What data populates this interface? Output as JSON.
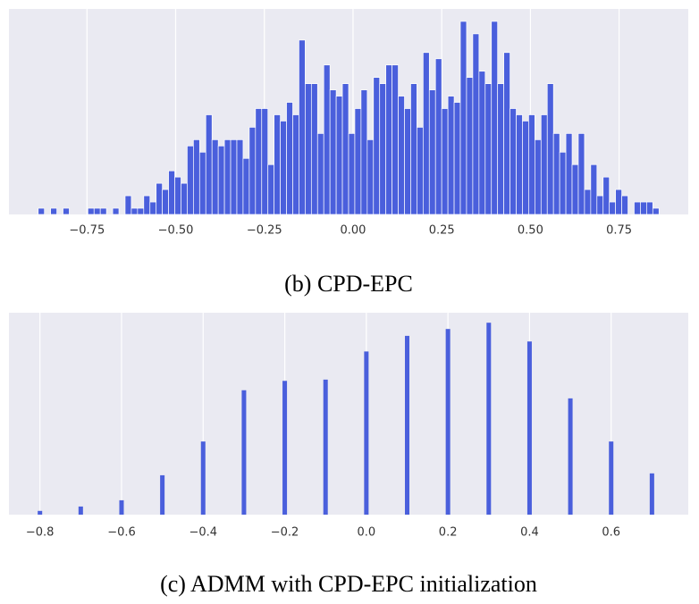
{
  "chart_data": [
    {
      "type": "histogram",
      "caption": "(b) CPD-EPC",
      "color": "#4a5fdc",
      "grid": true,
      "xlim": [
        -0.97,
        0.945
      ],
      "ylim": [
        0,
        33
      ],
      "xticks": [
        {
          "value": -0.75,
          "label": "−0.75"
        },
        {
          "value": -0.5,
          "label": "−0.50"
        },
        {
          "value": -0.25,
          "label": "−0.25"
        },
        {
          "value": 0,
          "label": "0.00"
        },
        0.25,
        {
          "value": 0.5,
          "label": "0.50"
        },
        0.75
      ],
      "bins": [
        -0.8875,
        -0.87,
        -0.8525,
        -0.835,
        -0.8175,
        -0.8,
        -0.7825,
        -0.765,
        -0.7475,
        -0.73,
        -0.7125,
        -0.695,
        -0.6775,
        -0.66,
        -0.6425,
        -0.625,
        -0.6075,
        -0.59,
        -0.5725,
        -0.555,
        -0.5375,
        -0.52,
        -0.5025,
        -0.485,
        -0.4675,
        -0.45,
        -0.4325,
        -0.415,
        -0.3975,
        -0.38,
        -0.3625,
        -0.345,
        -0.3275,
        -0.31,
        -0.2925,
        -0.275,
        -0.2575,
        -0.24,
        -0.2225,
        -0.205,
        -0.1875,
        -0.17,
        -0.1525,
        -0.135,
        -0.1175,
        -0.1,
        -0.0825,
        -0.065,
        -0.0475,
        -0.03,
        -0.0125,
        0.005,
        0.0225,
        0.04,
        0.0575,
        0.075,
        0.0925,
        0.11,
        0.1275,
        0.145,
        0.1625,
        0.18,
        0.1975,
        0.215,
        0.2325,
        0.25,
        0.2675,
        0.285,
        0.3025,
        0.32,
        0.3375,
        0.355,
        0.3725,
        0.39,
        0.4075,
        0.425,
        0.4425,
        0.46,
        0.4775,
        0.495,
        0.5125,
        0.53,
        0.5475,
        0.565,
        0.5825,
        0.6,
        0.6175,
        0.635,
        0.6525,
        0.67,
        0.6875,
        0.705,
        0.7225,
        0.74,
        0.7575,
        0.775,
        0.7925,
        0.81,
        0.8275,
        0.845,
        0.8625
      ],
      "values": [
        1,
        0,
        1,
        0,
        1,
        0,
        0,
        0,
        1,
        1,
        1,
        0,
        1,
        0,
        3,
        1,
        1,
        3,
        2,
        5,
        4,
        7,
        6,
        5,
        11,
        12,
        10,
        16,
        12,
        11,
        12,
        12,
        12,
        9,
        14,
        17,
        17,
        8,
        16,
        15,
        18,
        16,
        28,
        21,
        21,
        13,
        24,
        20,
        19,
        21,
        13,
        17,
        20,
        12,
        22,
        21,
        24,
        24,
        19,
        17,
        21,
        14,
        26,
        20,
        25,
        17,
        19,
        18,
        31,
        22,
        29,
        23,
        21,
        31,
        21,
        26,
        17,
        16,
        15,
        16,
        12,
        16,
        21,
        13,
        10,
        13,
        8,
        13,
        4,
        8,
        3,
        6,
        2,
        4,
        3,
        0,
        2,
        2,
        2,
        1
      ]
    },
    {
      "type": "bar",
      "caption": "(c) ADMM with CPD-EPC initialization",
      "color": "#4a5fdc",
      "grid": true,
      "xlim": [
        -0.876,
        0.789
      ],
      "ylim": [
        0,
        32.3
      ],
      "xticks": [
        {
          "value": -0.8,
          "label": "−0.8"
        },
        {
          "value": -0.6,
          "label": "−0.6"
        },
        {
          "value": -0.4,
          "label": "−0.4"
        },
        {
          "value": -0.2,
          "label": "−0.2"
        },
        {
          "value": 0,
          "label": "0.0"
        },
        0.2,
        0.4,
        0.6
      ],
      "x": [
        -0.8,
        -0.7,
        -0.6,
        -0.5,
        -0.4,
        -0.3,
        -0.2,
        -0.1,
        0,
        0.1,
        0.2,
        0.3,
        0.4,
        0.5,
        0.6,
        0.7
      ],
      "values": [
        0.6,
        1.3,
        2.3,
        6.3,
        11.7,
        19.9,
        21.4,
        21.6,
        26.1,
        28.6,
        29.7,
        30.7,
        27.7,
        18.6,
        11.7,
        6.6
      ]
    }
  ]
}
